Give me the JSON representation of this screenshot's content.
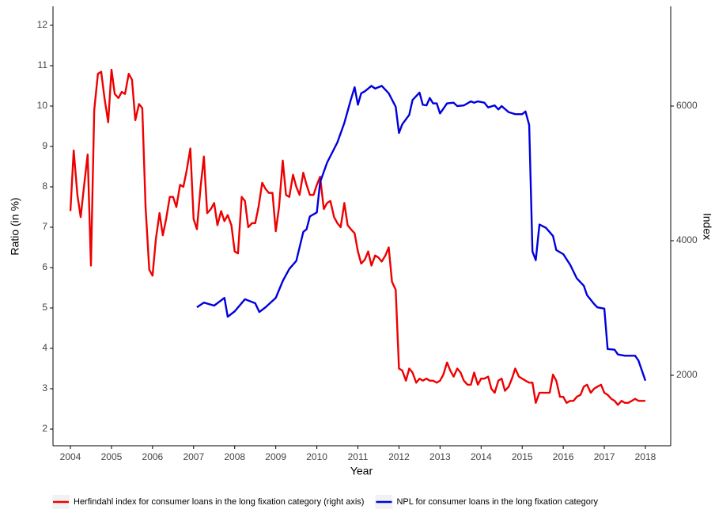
{
  "chart_data": {
    "type": "line",
    "x_label": "Year",
    "y_label": "Ratio (in %)",
    "y2_label": "Index",
    "xlim": [
      2003.576,
      2018.616
    ],
    "xticks": [
      2004,
      2005,
      2006,
      2007,
      2008,
      2009,
      2010,
      2011,
      2012,
      2013,
      2014,
      2015,
      2016,
      2017,
      2018
    ],
    "ylim": [
      1.588,
      12.47
    ],
    "yticks": [
      2,
      3,
      4,
      5,
      6,
      7,
      8,
      9,
      10,
      11,
      12
    ],
    "y2lim": [
      953,
      7482
    ],
    "y2ticks": [
      2000,
      4000,
      6000
    ],
    "grid": false,
    "legend": "bottom",
    "series": [
      {
        "name": "Herfindahl index for consumer loans in the long fixation category (right axis)",
        "color": "#ee0000",
        "x": [
          2004.0,
          2004.08,
          2004.17,
          2004.25,
          2004.33,
          2004.42,
          2004.5,
          2004.58,
          2004.67,
          2004.75,
          2004.83,
          2004.92,
          2005.0,
          2005.08,
          2005.17,
          2005.25,
          2005.33,
          2005.42,
          2005.5,
          2005.58,
          2005.67,
          2005.75,
          2005.83,
          2005.92,
          2006.0,
          2006.08,
          2006.17,
          2006.25,
          2006.33,
          2006.42,
          2006.5,
          2006.58,
          2006.67,
          2006.75,
          2006.83,
          2006.92,
          2007.0,
          2007.08,
          2007.17,
          2007.25,
          2007.33,
          2007.42,
          2007.5,
          2007.58,
          2007.67,
          2007.75,
          2007.83,
          2007.92,
          2008.0,
          2008.08,
          2008.17,
          2008.25,
          2008.33,
          2008.42,
          2008.5,
          2008.58,
          2008.67,
          2008.75,
          2008.83,
          2008.92,
          2009.0,
          2009.08,
          2009.17,
          2009.25,
          2009.33,
          2009.42,
          2009.5,
          2009.58,
          2009.67,
          2009.75,
          2009.83,
          2009.92,
          2010.0,
          2010.08,
          2010.17,
          2010.25,
          2010.33,
          2010.42,
          2010.5,
          2010.58,
          2010.67,
          2010.75,
          2010.83,
          2010.92,
          2011.0,
          2011.08,
          2011.17,
          2011.25,
          2011.33,
          2011.42,
          2011.5,
          2011.58,
          2011.67,
          2011.75,
          2011.83,
          2011.92,
          2012.0,
          2012.08,
          2012.17,
          2012.25,
          2012.33,
          2012.42,
          2012.5,
          2012.58,
          2012.67,
          2012.75,
          2012.83,
          2012.92,
          2013.0,
          2013.08,
          2013.17,
          2013.25,
          2013.33,
          2013.42,
          2013.5,
          2013.58,
          2013.67,
          2013.75,
          2013.83,
          2013.92,
          2014.0,
          2014.08,
          2014.17,
          2014.25,
          2014.33,
          2014.42,
          2014.5,
          2014.58,
          2014.67,
          2014.75,
          2014.83,
          2014.92,
          2015.0,
          2015.08,
          2015.17,
          2015.25,
          2015.33,
          2015.42,
          2015.5,
          2015.58,
          2015.67,
          2015.75,
          2015.83,
          2015.92,
          2016.0,
          2016.08,
          2016.17,
          2016.25,
          2016.33,
          2016.42,
          2016.5,
          2016.58,
          2016.67,
          2016.75,
          2016.83,
          2016.92,
          2017.0,
          2017.08,
          2017.17,
          2017.25,
          2017.33,
          2017.42,
          2017.5,
          2017.58,
          2017.67,
          2017.75,
          2017.83,
          2017.92,
          2018.0
        ],
        "values": [
          7.4,
          8.9,
          7.8,
          7.25,
          8.0,
          8.8,
          6.05,
          9.9,
          10.8,
          10.85,
          10.2,
          9.6,
          10.9,
          10.3,
          10.2,
          10.35,
          10.3,
          10.8,
          10.65,
          9.65,
          10.05,
          9.95,
          7.5,
          5.95,
          5.8,
          6.7,
          7.35,
          6.8,
          7.2,
          7.75,
          7.75,
          7.5,
          8.05,
          8.0,
          8.4,
          8.95,
          7.2,
          6.95,
          8.0,
          8.75,
          7.35,
          7.45,
          7.6,
          7.05,
          7.4,
          7.15,
          7.3,
          7.05,
          6.4,
          6.35,
          7.75,
          7.65,
          7.0,
          7.1,
          7.1,
          7.5,
          8.1,
          7.95,
          7.85,
          7.85,
          6.9,
          7.5,
          8.65,
          7.8,
          7.75,
          8.3,
          8.0,
          7.8,
          8.35,
          8.05,
          7.8,
          7.8,
          8.05,
          8.25,
          7.45,
          7.6,
          7.65,
          7.25,
          7.1,
          7.0,
          7.6,
          7.05,
          6.95,
          6.85,
          6.4,
          6.1,
          6.2,
          6.4,
          6.05,
          6.3,
          6.25,
          6.15,
          6.3,
          6.5,
          5.65,
          5.45,
          3.5,
          3.45,
          3.2,
          3.5,
          3.4,
          3.15,
          3.25,
          3.2,
          3.25,
          3.2,
          3.2,
          3.15,
          3.2,
          3.35,
          3.65,
          3.45,
          3.3,
          3.5,
          3.4,
          3.2,
          3.1,
          3.1,
          3.4,
          3.1,
          3.25,
          3.25,
          3.3,
          3.0,
          2.9,
          3.2,
          3.25,
          2.95,
          3.05,
          3.25,
          3.5,
          3.3,
          3.25,
          3.2,
          3.15,
          3.15,
          2.65,
          2.9,
          2.9,
          2.9,
          2.9,
          3.35,
          3.2,
          2.8,
          2.8,
          2.65,
          2.7,
          2.7,
          2.8,
          2.85,
          3.05,
          3.1,
          2.9,
          3.0,
          3.05,
          3.1,
          2.9,
          2.85,
          2.75,
          2.7,
          2.6,
          2.7,
          2.65,
          2.65,
          2.7,
          2.75,
          2.7,
          2.7,
          2.7
        ]
      },
      {
        "name": "NPL for consumer loans in the long fixation category",
        "color": "#0000dd",
        "axis": "y2",
        "x": [
          2007.08,
          2007.25,
          2007.5,
          2007.75,
          2007.83,
          2008.0,
          2008.25,
          2008.5,
          2008.6,
          2008.75,
          2009.0,
          2009.17,
          2009.33,
          2009.5,
          2009.67,
          2009.75,
          2009.83,
          2010.0,
          2010.08,
          2010.25,
          2010.5,
          2010.67,
          2010.83,
          2010.92,
          2011.0,
          2011.08,
          2011.17,
          2011.33,
          2011.42,
          2011.58,
          2011.75,
          2011.92,
          2012.0,
          2012.08,
          2012.25,
          2012.33,
          2012.5,
          2012.58,
          2012.67,
          2012.75,
          2012.83,
          2012.92,
          2013.0,
          2013.17,
          2013.33,
          2013.42,
          2013.58,
          2013.75,
          2013.83,
          2013.92,
          2014.08,
          2014.17,
          2014.33,
          2014.42,
          2014.5,
          2014.67,
          2014.83,
          2015.0,
          2015.08,
          2015.17,
          2015.25,
          2015.33,
          2015.42,
          2015.58,
          2015.75,
          2015.83,
          2016.0,
          2016.17,
          2016.33,
          2016.5,
          2016.58,
          2016.75,
          2016.83,
          2017.0,
          2017.08,
          2017.25,
          2017.33,
          2017.5,
          2017.75,
          2017.83,
          2018.0
        ],
        "values": [
          3010,
          3080,
          3035,
          3150,
          2870,
          2950,
          3130,
          3070,
          2940,
          3010,
          3150,
          3400,
          3580,
          3700,
          4130,
          4170,
          4360,
          4420,
          4870,
          5160,
          5460,
          5750,
          6100,
          6280,
          6020,
          6190,
          6220,
          6300,
          6260,
          6300,
          6190,
          5990,
          5600,
          5730,
          5870,
          6090,
          6200,
          6020,
          6010,
          6120,
          6040,
          6040,
          5890,
          6040,
          6050,
          6000,
          6010,
          6070,
          6050,
          6070,
          6050,
          5980,
          6010,
          5950,
          6000,
          5910,
          5880,
          5880,
          5920,
          5720,
          3840,
          3710,
          4240,
          4190,
          4070,
          3860,
          3800,
          3640,
          3440,
          3330,
          3190,
          3060,
          3010,
          2990,
          2390,
          2380,
          2310,
          2290,
          2290,
          2220,
          1920
        ]
      }
    ]
  }
}
